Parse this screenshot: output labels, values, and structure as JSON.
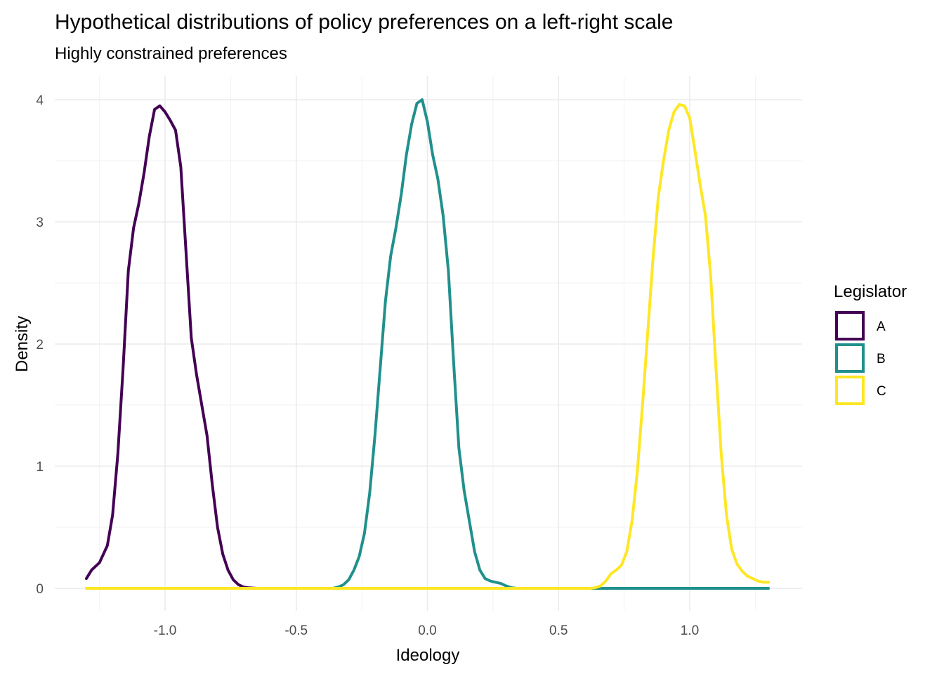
{
  "chart_data": {
    "type": "line",
    "title": "Hypothetical distributions of policy preferences on a left-right scale",
    "subtitle": "Highly constrained preferences",
    "xlabel": "Ideology",
    "ylabel": "Density",
    "xlim": [
      -1.3,
      1.3
    ],
    "ylim": [
      0,
      4
    ],
    "x_ticks": [
      -1.0,
      -0.5,
      0.0,
      0.5,
      1.0
    ],
    "x_tick_labels": [
      "-1.0",
      "-0.5",
      "0.0",
      "0.5",
      "1.0"
    ],
    "y_ticks": [
      0,
      1,
      2,
      3,
      4
    ],
    "y_tick_labels": [
      "0",
      "1",
      "2",
      "3",
      "4"
    ],
    "grid": true,
    "legend": {
      "title": "Legislator",
      "position": "right"
    },
    "series": [
      {
        "name": "A",
        "color": "#440154",
        "points": [
          [
            -1.3,
            0.08
          ],
          [
            -1.28,
            0.15
          ],
          [
            -1.25,
            0.21
          ],
          [
            -1.22,
            0.35
          ],
          [
            -1.2,
            0.6
          ],
          [
            -1.18,
            1.1
          ],
          [
            -1.16,
            1.8
          ],
          [
            -1.14,
            2.6
          ],
          [
            -1.12,
            2.95
          ],
          [
            -1.1,
            3.15
          ],
          [
            -1.08,
            3.4
          ],
          [
            -1.06,
            3.7
          ],
          [
            -1.04,
            3.92
          ],
          [
            -1.02,
            3.95
          ],
          [
            -1.0,
            3.9
          ],
          [
            -0.98,
            3.83
          ],
          [
            -0.96,
            3.75
          ],
          [
            -0.94,
            3.45
          ],
          [
            -0.92,
            2.75
          ],
          [
            -0.9,
            2.05
          ],
          [
            -0.88,
            1.75
          ],
          [
            -0.86,
            1.5
          ],
          [
            -0.84,
            1.25
          ],
          [
            -0.82,
            0.85
          ],
          [
            -0.8,
            0.5
          ],
          [
            -0.78,
            0.28
          ],
          [
            -0.76,
            0.15
          ],
          [
            -0.74,
            0.07
          ],
          [
            -0.72,
            0.03
          ],
          [
            -0.7,
            0.01
          ],
          [
            -0.68,
            0.004
          ],
          [
            -0.65,
            0.0
          ],
          [
            -0.5,
            0.0
          ],
          [
            -0.3,
            0.0
          ],
          [
            0.0,
            0.0
          ],
          [
            0.3,
            0.0
          ],
          [
            0.5,
            0.0
          ],
          [
            0.6,
            0.0
          ]
        ]
      },
      {
        "name": "B",
        "color": "#21908C",
        "points": [
          [
            -0.7,
            0.0
          ],
          [
            -0.5,
            0.0
          ],
          [
            -0.36,
            0.0
          ],
          [
            -0.34,
            0.01
          ],
          [
            -0.32,
            0.03
          ],
          [
            -0.3,
            0.07
          ],
          [
            -0.28,
            0.15
          ],
          [
            -0.26,
            0.26
          ],
          [
            -0.24,
            0.45
          ],
          [
            -0.22,
            0.78
          ],
          [
            -0.2,
            1.25
          ],
          [
            -0.18,
            1.8
          ],
          [
            -0.16,
            2.35
          ],
          [
            -0.14,
            2.72
          ],
          [
            -0.12,
            2.95
          ],
          [
            -0.1,
            3.22
          ],
          [
            -0.08,
            3.55
          ],
          [
            -0.06,
            3.8
          ],
          [
            -0.04,
            3.97
          ],
          [
            -0.02,
            4.0
          ],
          [
            0.0,
            3.82
          ],
          [
            0.02,
            3.55
          ],
          [
            0.04,
            3.35
          ],
          [
            0.06,
            3.05
          ],
          [
            0.08,
            2.6
          ],
          [
            0.1,
            1.85
          ],
          [
            0.12,
            1.15
          ],
          [
            0.14,
            0.8
          ],
          [
            0.16,
            0.55
          ],
          [
            0.18,
            0.3
          ],
          [
            0.2,
            0.15
          ],
          [
            0.22,
            0.08
          ],
          [
            0.24,
            0.06
          ],
          [
            0.26,
            0.05
          ],
          [
            0.28,
            0.04
          ],
          [
            0.3,
            0.02
          ],
          [
            0.32,
            0.005
          ],
          [
            0.34,
            0.0
          ],
          [
            0.5,
            0.0
          ],
          [
            0.7,
            0.0
          ],
          [
            1.0,
            0.0
          ],
          [
            1.3,
            0.0
          ]
        ]
      },
      {
        "name": "C",
        "color": "#FDE725",
        "points": [
          [
            -1.3,
            0.0
          ],
          [
            -1.0,
            0.0
          ],
          [
            -0.5,
            0.0
          ],
          [
            0.0,
            0.0
          ],
          [
            0.5,
            0.0
          ],
          [
            0.62,
            0.0
          ],
          [
            0.64,
            0.005
          ],
          [
            0.66,
            0.02
          ],
          [
            0.68,
            0.06
          ],
          [
            0.7,
            0.12
          ],
          [
            0.72,
            0.15
          ],
          [
            0.74,
            0.19
          ],
          [
            0.76,
            0.3
          ],
          [
            0.78,
            0.55
          ],
          [
            0.8,
            0.95
          ],
          [
            0.82,
            1.5
          ],
          [
            0.84,
            2.1
          ],
          [
            0.86,
            2.7
          ],
          [
            0.88,
            3.2
          ],
          [
            0.9,
            3.5
          ],
          [
            0.92,
            3.75
          ],
          [
            0.94,
            3.9
          ],
          [
            0.96,
            3.96
          ],
          [
            0.98,
            3.95
          ],
          [
            1.0,
            3.85
          ],
          [
            1.02,
            3.58
          ],
          [
            1.04,
            3.3
          ],
          [
            1.06,
            3.05
          ],
          [
            1.08,
            2.55
          ],
          [
            1.1,
            1.8
          ],
          [
            1.12,
            1.1
          ],
          [
            1.14,
            0.6
          ],
          [
            1.16,
            0.32
          ],
          [
            1.18,
            0.2
          ],
          [
            1.2,
            0.14
          ],
          [
            1.22,
            0.1
          ],
          [
            1.24,
            0.08
          ],
          [
            1.26,
            0.06
          ],
          [
            1.28,
            0.05
          ],
          [
            1.3,
            0.05
          ]
        ]
      }
    ]
  }
}
